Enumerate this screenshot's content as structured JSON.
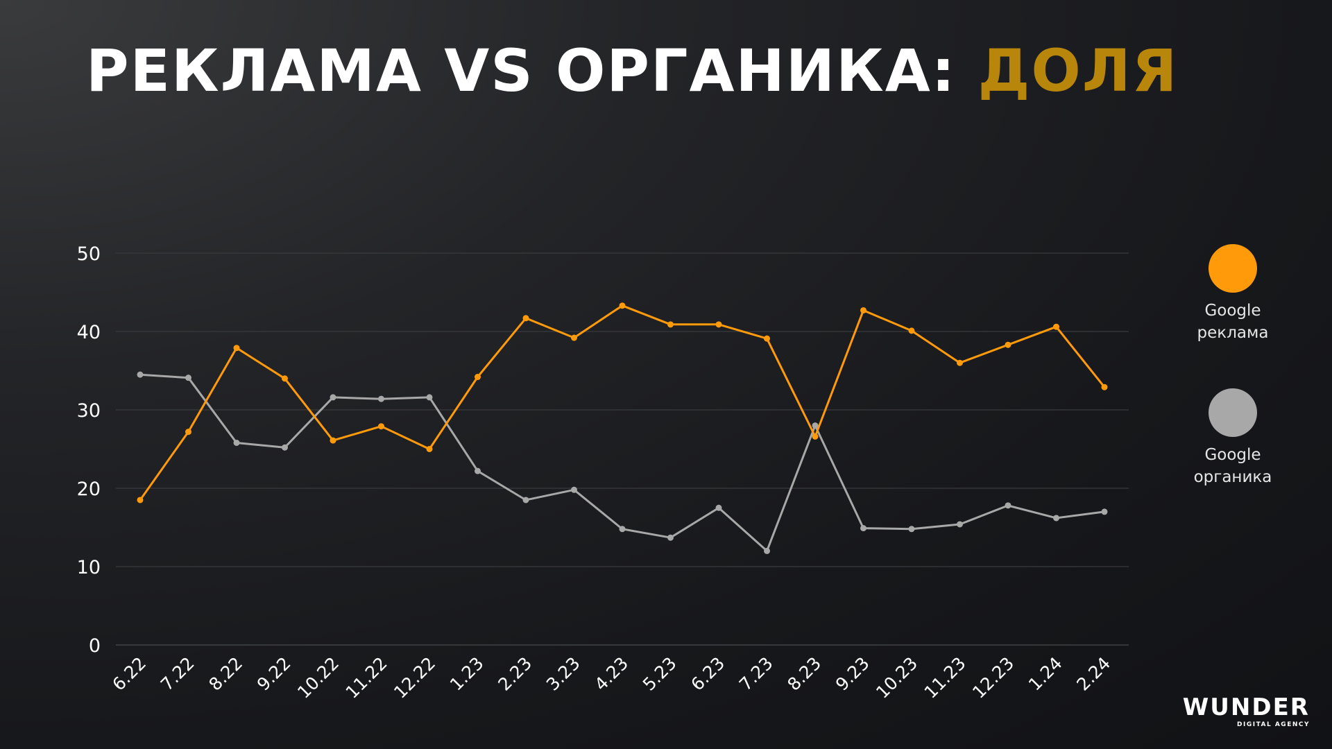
{
  "title": {
    "main": "РЕКЛАМА VS ОРГАНИКА:",
    "accent": "ДОЛЯ"
  },
  "colors": {
    "accent": "#b8860b",
    "series_ads": "#ff9a0a",
    "series_organic": "#a8a8a8",
    "grid": "#3a3b3f",
    "tick_text": "#ffffff"
  },
  "legend": {
    "ads": {
      "line1": "Google",
      "line2": "реклама"
    },
    "organic": {
      "line1": "Google",
      "line2": "органика"
    }
  },
  "logo": {
    "main": "WUNDER",
    "sub": "DIGITAL AGENCY"
  },
  "chart_data": {
    "type": "line",
    "title": "",
    "xlabel": "",
    "ylabel": "",
    "ylim": [
      0,
      50
    ],
    "yticks": [
      0,
      10,
      20,
      30,
      40,
      50
    ],
    "grid": true,
    "legend_position": "right",
    "categories": [
      "6.22",
      "7.22",
      "8.22",
      "9.22",
      "10.22",
      "11.22",
      "12.22",
      "1.23",
      "2.23",
      "3.23",
      "4.23",
      "5.23",
      "6.23",
      "7.23",
      "8.23",
      "9.23",
      "10.23",
      "11.23",
      "12.23",
      "1.24",
      "2.24"
    ],
    "series": [
      {
        "name": "Google реклама",
        "color": "#ff9a0a",
        "values": [
          18.5,
          27.2,
          37.9,
          34.0,
          26.1,
          27.9,
          25.0,
          34.2,
          41.7,
          39.2,
          43.3,
          40.9,
          40.9,
          39.1,
          26.6,
          42.7,
          40.1,
          36.0,
          38.3,
          40.6,
          32.9
        ]
      },
      {
        "name": "Google органика",
        "color": "#a8a8a8",
        "values": [
          34.5,
          34.1,
          25.8,
          25.2,
          31.6,
          31.4,
          31.6,
          22.2,
          18.5,
          19.8,
          14.8,
          13.7,
          17.5,
          12.0,
          28.0,
          14.9,
          14.8,
          15.4,
          17.8,
          16.2,
          17.0
        ]
      }
    ]
  }
}
